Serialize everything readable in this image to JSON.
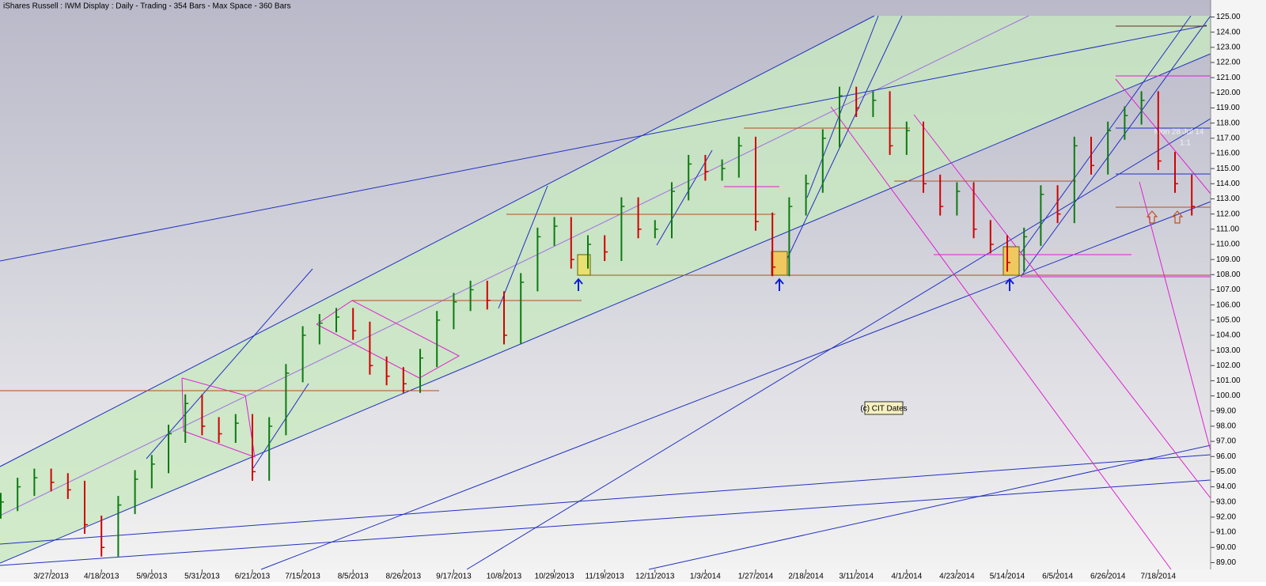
{
  "chart_data": {
    "type": "hlc",
    "title": "iShares Russell : IWM Display :  Daily  - Trading - 354 Bars -  Max Space - 360 Bars",
    "annotations": [
      "(c) CIT Dates",
      "Mon 28 Jul 14",
      "1:1"
    ],
    "up_color": "#0b7a10",
    "down_color": "#d00000",
    "categories": [
      null,
      null,
      null,
      "3/27/2013",
      null,
      null,
      "4/18/2013",
      null,
      null,
      "5/9/2013",
      null,
      null,
      "5/31/2013",
      null,
      null,
      "6/21/2013",
      null,
      null,
      "7/15/2013",
      null,
      null,
      "8/5/2013",
      null,
      null,
      "8/26/2013",
      null,
      null,
      "9/17/2013",
      null,
      null,
      "10/8/2013",
      null,
      null,
      "10/29/2013",
      null,
      null,
      "11/19/2013",
      null,
      null,
      "12/11/2013",
      null,
      null,
      "1/3/2014",
      null,
      null,
      "1/27/2014",
      null,
      null,
      "2/18/2014",
      null,
      null,
      "3/11/2014",
      null,
      null,
      "4/1/2014",
      null,
      null,
      "4/23/2014",
      null,
      null,
      "5/14/2014",
      null,
      null,
      "6/5/2014",
      null,
      null,
      "6/26/2014",
      null,
      null,
      "7/18/2014",
      null,
      null
    ],
    "high": [
      93.6,
      94.6,
      95.2,
      95.2,
      94.9,
      94.4,
      92.1,
      93.4,
      95.1,
      96.1,
      98.1,
      100.1,
      100.1,
      98.6,
      98.8,
      98.8,
      98.6,
      102.1,
      104.6,
      105.4,
      105.8,
      105.8,
      104.9,
      102.6,
      101.9,
      103.1,
      105.6,
      106.8,
      107.6,
      107.6,
      106.9,
      108.1,
      111.1,
      111.8,
      111.8,
      110.6,
      110.6,
      113.1,
      113.1,
      111.6,
      114.1,
      115.9,
      115.9,
      115.6,
      117.1,
      117.1,
      112.1,
      113.1,
      114.6,
      117.6,
      120.4,
      120.4,
      120.1,
      120.1,
      118.1,
      118.1,
      114.6,
      114.1,
      114.1,
      111.6,
      110.6,
      111.1,
      113.9,
      113.9,
      117.1,
      117.1,
      118.1,
      119.1,
      120.1,
      120.1,
      116.1,
      114.6
    ],
    "low": [
      91.9,
      92.4,
      93.4,
      93.7,
      93.2,
      90.9,
      89.4,
      89.4,
      92.2,
      93.9,
      94.9,
      96.9,
      97.4,
      96.9,
      96.9,
      94.4,
      94.4,
      97.4,
      100.9,
      103.4,
      104.2,
      103.7,
      101.4,
      100.7,
      100.2,
      100.2,
      101.9,
      104.4,
      105.6,
      105.7,
      103.4,
      103.4,
      106.9,
      109.9,
      108.4,
      108.4,
      108.9,
      108.9,
      110.4,
      110.4,
      110.4,
      112.9,
      114.2,
      114.2,
      114.4,
      110.9,
      107.9,
      107.9,
      111.9,
      113.4,
      116.4,
      118.4,
      118.4,
      115.9,
      115.9,
      113.4,
      111.9,
      111.9,
      110.4,
      109.4,
      108.2,
      108.2,
      109.9,
      111.4,
      111.4,
      114.6,
      114.6,
      116.9,
      117.9,
      114.9,
      113.4,
      111.9
    ],
    "close": [
      93.0,
      94.0,
      94.6,
      94.3,
      93.8,
      91.5,
      90.0,
      92.8,
      94.5,
      95.5,
      97.5,
      99.5,
      98.0,
      97.5,
      98.2,
      95.0,
      98.0,
      101.5,
      104.0,
      104.8,
      105.2,
      104.3,
      102.0,
      101.3,
      100.8,
      102.5,
      105.0,
      106.2,
      107.0,
      106.3,
      104.0,
      107.5,
      110.5,
      111.2,
      109.0,
      110.0,
      109.5,
      112.5,
      111.0,
      111.0,
      113.5,
      115.3,
      114.8,
      115.0,
      116.5,
      111.5,
      108.5,
      112.5,
      114.0,
      117.0,
      119.8,
      119.0,
      119.5,
      116.5,
      117.5,
      114.0,
      112.5,
      113.5,
      111.0,
      110.0,
      108.8,
      110.5,
      113.3,
      112.0,
      116.5,
      115.2,
      117.5,
      118.5,
      119.5,
      115.5,
      114.0,
      112.5
    ],
    "ylim": [
      88.5,
      125.6
    ],
    "yticks": [
      {
        "value": 89,
        "label": "89.00"
      },
      {
        "value": 90,
        "label": "90.00"
      },
      {
        "value": 91,
        "label": "91.00"
      },
      {
        "value": 92,
        "label": "92.00"
      },
      {
        "value": 93,
        "label": "93.00"
      },
      {
        "value": 94,
        "label": "94.00"
      },
      {
        "value": 95,
        "label": "95.00"
      },
      {
        "value": 96,
        "label": "96.00"
      },
      {
        "value": 97,
        "label": "97.00"
      },
      {
        "value": 98,
        "label": "98.00"
      },
      {
        "value": 99,
        "label": "99.00"
      },
      {
        "value": 100,
        "label": "100.00"
      },
      {
        "value": 101,
        "label": "101.00"
      },
      {
        "value": 102,
        "label": "102.00"
      },
      {
        "value": 103,
        "label": "103.00"
      },
      {
        "value": 104,
        "label": "104.00"
      },
      {
        "value": 105,
        "label": "105.00"
      },
      {
        "value": 106,
        "label": "106.00"
      },
      {
        "value": 107,
        "label": "107.00"
      },
      {
        "value": 108,
        "label": "108.00"
      },
      {
        "value": 109,
        "label": "109.00"
      },
      {
        "value": 110,
        "label": "110.00"
      },
      {
        "value": 111,
        "label": "111.00"
      },
      {
        "value": 112,
        "label": "112.00"
      },
      {
        "value": 113,
        "label": "113.00"
      },
      {
        "value": 114,
        "label": "114.00"
      },
      {
        "value": 115,
        "label": "115.00"
      },
      {
        "value": 116,
        "label": "116.00"
      },
      {
        "value": 117,
        "label": "117.00"
      },
      {
        "value": 118,
        "label": "118.00"
      },
      {
        "value": 119,
        "label": "119.00"
      },
      {
        "value": 120,
        "label": "120.00"
      },
      {
        "value": 121,
        "label": "121.00"
      },
      {
        "value": 122,
        "label": "122.00"
      },
      {
        "value": 123,
        "label": "123.00"
      },
      {
        "value": 124,
        "label": "124.00"
      },
      {
        "value": 125,
        "label": "125.00"
      }
    ]
  }
}
